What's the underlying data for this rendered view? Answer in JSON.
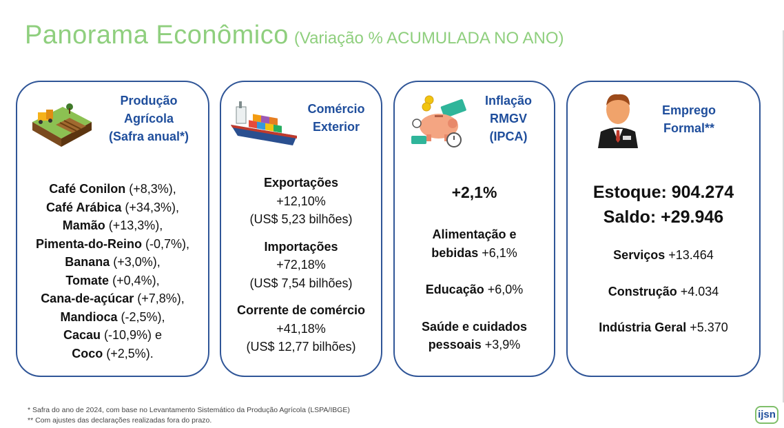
{
  "title": {
    "main": "Panorama Econômico",
    "sub": "(Variação % ACUMULADA NO ANO)"
  },
  "cards": [
    {
      "heading": [
        "Produção",
        "Agrícola",
        "(Safra anual*)"
      ],
      "icon": "farm-field-icon",
      "items": [
        {
          "name": "Café Conilon",
          "value": "(+8,3%),"
        },
        {
          "name": "Café Arábica",
          "value": "(+34,3%),"
        },
        {
          "name": "Mamão",
          "value": "(+13,3%),"
        },
        {
          "name": "Pimenta-do-Reino",
          "value": "(-0,7%),"
        },
        {
          "name": "Banana",
          "value": "(+3,0%),"
        },
        {
          "name": "Tomate",
          "value": "(+0,4%),"
        },
        {
          "name": "Cana-de-açúcar",
          "value": "(+7,8%),"
        },
        {
          "name": "Mandioca",
          "value": "(-2,5%),"
        },
        {
          "name": "Cacau",
          "value": "(-10,9%) e"
        },
        {
          "name": "Coco",
          "value": "(+2,5%)."
        }
      ]
    },
    {
      "heading": [
        "Comércio",
        "Exterior"
      ],
      "icon": "cargo-ship-icon",
      "groups": [
        {
          "label": "Exportações",
          "pct": "+12,10%",
          "amount": "(US$ 5,23 bilhões)"
        },
        {
          "label": "Importações",
          "pct": "+72,18%",
          "amount": "(US$ 7,54 bilhões)"
        },
        {
          "label": "Corrente de comércio",
          "pct": "+41,18%",
          "amount": "(US$ 12,77 bilhões)"
        }
      ]
    },
    {
      "heading": [
        "Inflação",
        "RMGV",
        "(IPCA)"
      ],
      "icon": "piggy-bank-icon",
      "headline": "+2,1%",
      "items": [
        {
          "name1": "Alimentação e",
          "name2": "bebidas",
          "value": "+6,1%"
        },
        {
          "name1": "Educação",
          "name2": "",
          "value": "+6,0%"
        },
        {
          "name1": "Saúde e cuidados",
          "name2": "pessoais",
          "value": "+3,9%"
        }
      ]
    },
    {
      "heading": [
        "Emprego",
        "Formal**"
      ],
      "icon": "businessman-icon",
      "stock": "Estoque: 904.274",
      "balance": "Saldo: +29.946",
      "items": [
        {
          "name": "Serviços",
          "value": "+13.464"
        },
        {
          "name": "Construção",
          "value": "+4.034"
        },
        {
          "name": "Indústria Geral",
          "value": "+5.370"
        }
      ]
    }
  ],
  "footnotes": [
    "* Safra do ano de 2024, com base no Levantamento Sistemático da Produção Agrícola (LSPA/IBGE)",
    "** Com ajustes das declarações realizadas fora do prazo."
  ],
  "logo": "ijsn",
  "colors": {
    "title": "#8fcf7e",
    "heading": "#1f4e9c",
    "border": "#2f5597"
  }
}
